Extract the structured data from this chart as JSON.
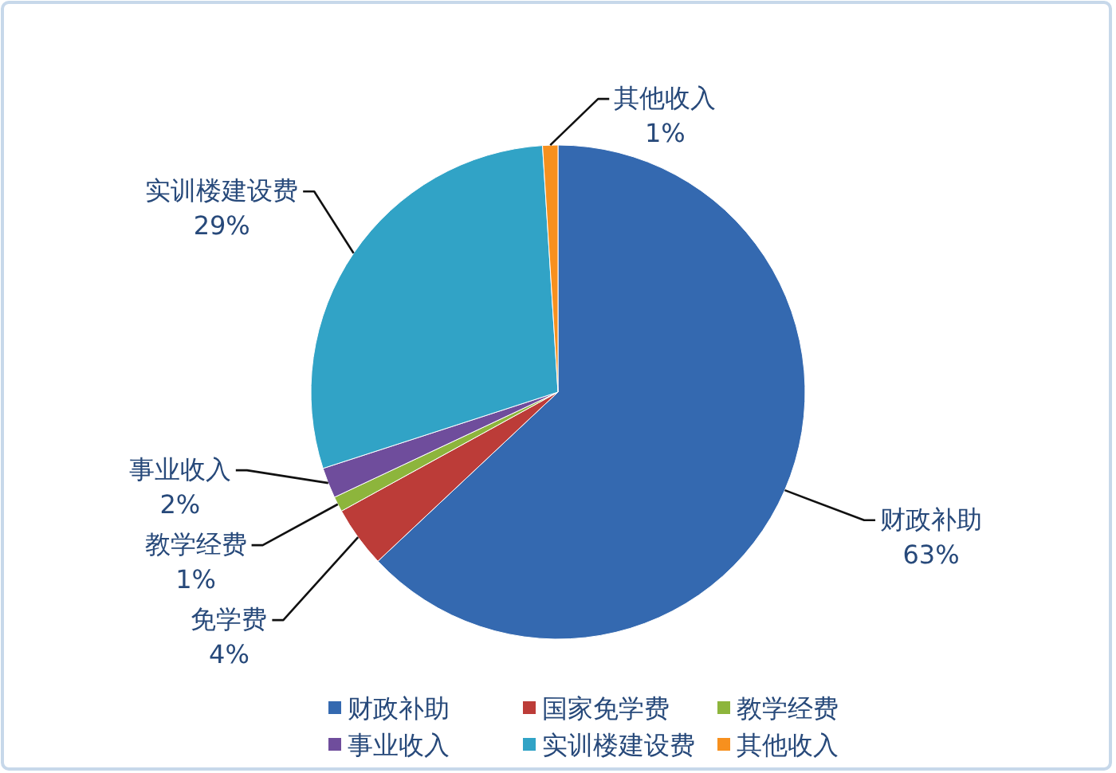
{
  "chart_data": {
    "type": "pie",
    "categories": [
      "财政补助",
      "国家免学费",
      "教学经费",
      "事业收入",
      "实训楼建设费",
      "其他收入"
    ],
    "values": [
      63,
      4,
      1,
      2,
      29,
      1
    ],
    "colors": [
      "#3469b0",
      "#bc3c38",
      "#8db53c",
      "#6f4d9c",
      "#31a3c6",
      "#f7901e"
    ],
    "value_labels": [
      "财政补助\n63%",
      "免学费\n4%",
      "教学经费\n1%",
      "事业收入\n2%",
      "实训楼建设费\n29%",
      "其他收入\n1%"
    ],
    "legend": "bottom"
  }
}
